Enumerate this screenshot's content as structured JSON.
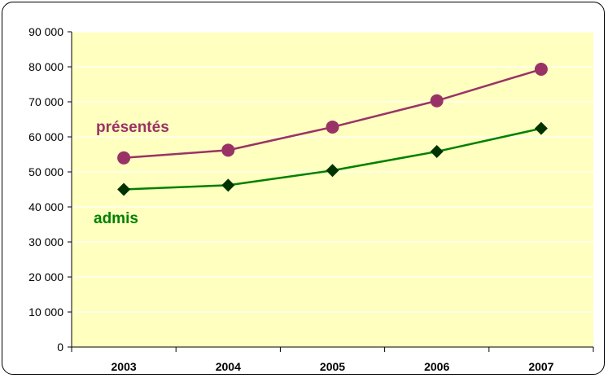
{
  "chart_data": {
    "type": "line",
    "categories": [
      "2003",
      "2004",
      "2005",
      "2006",
      "2007"
    ],
    "ylim": [
      0,
      90000
    ],
    "yticks": [
      0,
      10000,
      20000,
      30000,
      40000,
      50000,
      60000,
      70000,
      80000,
      90000
    ],
    "ytick_labels": [
      "0",
      "10 000",
      "20 000",
      "30 000",
      "40 000",
      "50 000",
      "60 000",
      "70 000",
      "80 000",
      "90 000"
    ],
    "grid": "horizontal",
    "plot_background": "#FFFFC0",
    "series": [
      {
        "name": "présentés",
        "values": [
          54000,
          56200,
          62800,
          70300,
          79300
        ],
        "color": "#993366",
        "marker": "circle"
      },
      {
        "name": "admis",
        "values": [
          45000,
          46200,
          50400,
          55800,
          62400
        ],
        "color": "#008000",
        "marker_color": "#003300",
        "marker": "diamond"
      }
    ]
  }
}
